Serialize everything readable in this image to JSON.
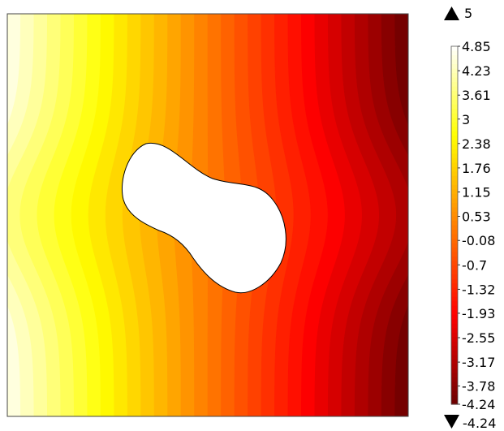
{
  "chart_data": {
    "type": "heatmap",
    "title": "",
    "xlabel": "",
    "ylabel": "",
    "colormap": "heat",
    "color_stops": [
      "#ffffff",
      "#ffff00",
      "#ff7f00",
      "#ff0000",
      "#6b0000"
    ],
    "range": {
      "max": "5",
      "min": "-4.24"
    },
    "range_values": [
      5,
      -4.24
    ],
    "x_field_range": [
      4.85,
      -4.24
    ],
    "contour_levels": 30,
    "colorbar": {
      "ticks": [
        "4.85",
        "4.23",
        "3.61",
        "3",
        "2.38",
        "1.76",
        "1.15",
        "0.53",
        "-0.08",
        "-0.7",
        "-1.32",
        "-1.93",
        "-2.55",
        "-3.17",
        "-3.78",
        "-4.24"
      ],
      "tick_values": [
        4.85,
        4.23,
        3.61,
        3,
        2.38,
        1.76,
        1.15,
        0.53,
        -0.08,
        -0.7,
        -1.32,
        -1.93,
        -2.55,
        -3.17,
        -3.78,
        -4.24
      ]
    },
    "grid": false,
    "legend": "right"
  }
}
